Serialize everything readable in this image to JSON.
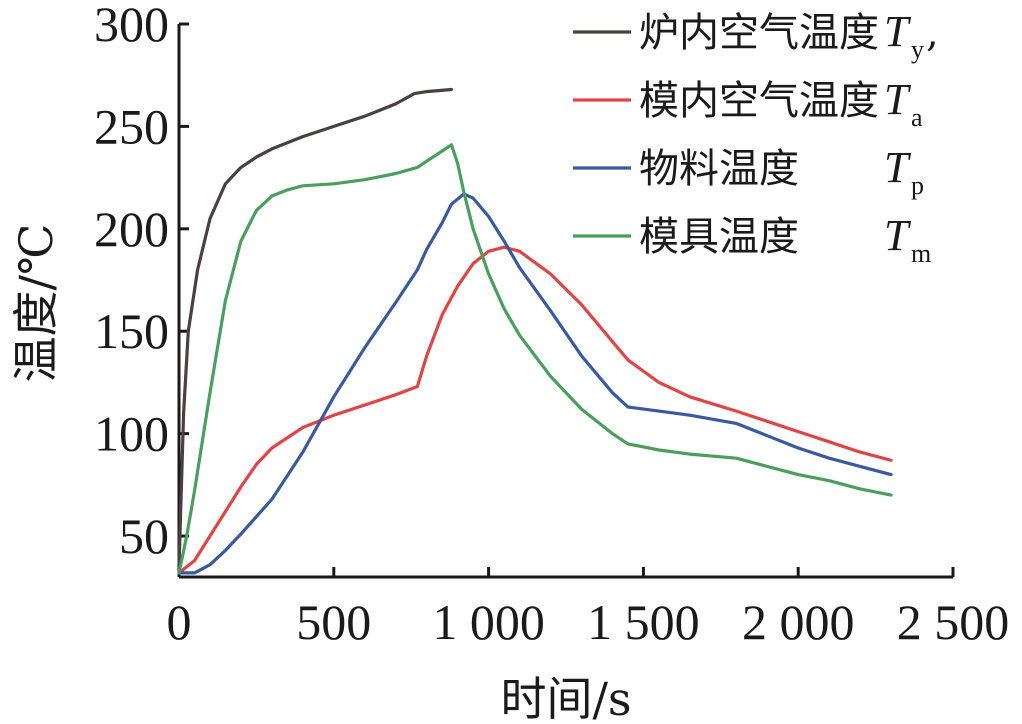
{
  "chart_data": {
    "type": "line",
    "title": "",
    "xlabel": "时间/s",
    "ylabel": "温度/℃",
    "xlim": [
      0,
      2500
    ],
    "ylim": [
      30,
      300
    ],
    "xticks": [
      0,
      500,
      1000,
      1500,
      2000,
      2500
    ],
    "xtick_labels": [
      "0",
      "500",
      "1 000",
      "1 500",
      "2 000",
      "2 500"
    ],
    "yticks": [
      50,
      100,
      150,
      200,
      250,
      300
    ],
    "ytick_labels": [
      "50",
      "100",
      "150",
      "200",
      "250",
      "300"
    ],
    "grid": false,
    "legend_position": "top-right",
    "series": [
      {
        "name": "炉内空气温度",
        "symbol": "T",
        "subscript": "y",
        "suffix": ",",
        "color": "#4a4040",
        "x": [
          0,
          15,
          30,
          60,
          100,
          150,
          200,
          250,
          300,
          400,
          500,
          600,
          700,
          760,
          800,
          880
        ],
        "y": [
          35,
          110,
          150,
          180,
          205,
          222,
          230,
          235,
          239,
          245,
          250,
          255,
          261,
          266,
          267,
          268
        ]
      },
      {
        "name": "模内空气温度",
        "symbol": "T",
        "subscript": "a",
        "suffix": "",
        "color": "#e04444",
        "x": [
          0,
          50,
          100,
          150,
          200,
          250,
          300,
          400,
          500,
          600,
          700,
          770,
          800,
          850,
          900,
          950,
          1000,
          1050,
          1100,
          1200,
          1300,
          1400,
          1450,
          1550,
          1650,
          1800,
          1900,
          2000,
          2100,
          2200,
          2300
        ],
        "y": [
          32,
          38,
          50,
          62,
          74,
          85,
          93,
          103,
          109,
          114,
          119,
          123,
          138,
          158,
          172,
          183,
          189,
          191,
          189,
          178,
          163,
          145,
          136,
          125,
          118,
          111,
          106,
          101,
          96,
          91,
          87
        ]
      },
      {
        "name": "物料温度",
        "symbol": "T",
        "subscript": "p",
        "suffix": "",
        "color": "#3a5aa0",
        "x": [
          0,
          50,
          100,
          150,
          200,
          300,
          400,
          500,
          600,
          700,
          770,
          800,
          850,
          880,
          920,
          950,
          1000,
          1050,
          1100,
          1200,
          1300,
          1400,
          1450,
          1550,
          1650,
          1800,
          1900,
          2000,
          2100,
          2200,
          2300
        ],
        "y": [
          32,
          32,
          36,
          43,
          51,
          68,
          91,
          118,
          142,
          164,
          180,
          190,
          203,
          212,
          217,
          215,
          206,
          194,
          181,
          160,
          138,
          120,
          113,
          111,
          109,
          105,
          99,
          93,
          88,
          84,
          80
        ]
      },
      {
        "name": "模具温度",
        "symbol": "T",
        "subscript": "m",
        "suffix": "",
        "color": "#4a9f5e",
        "x": [
          0,
          25,
          50,
          100,
          150,
          200,
          250,
          300,
          350,
          400,
          500,
          600,
          700,
          770,
          800,
          850,
          880,
          900,
          920,
          950,
          1000,
          1050,
          1100,
          1200,
          1300,
          1400,
          1450,
          1550,
          1650,
          1800,
          1900,
          2000,
          2100,
          2200,
          2300
        ],
        "y": [
          32,
          50,
          72,
          120,
          165,
          194,
          209,
          216,
          219,
          221,
          222,
          224,
          227,
          230,
          233,
          238,
          241,
          232,
          218,
          200,
          178,
          161,
          148,
          128,
          112,
          100,
          95,
          92,
          90,
          88,
          84,
          80,
          77,
          73,
          70
        ]
      }
    ]
  }
}
